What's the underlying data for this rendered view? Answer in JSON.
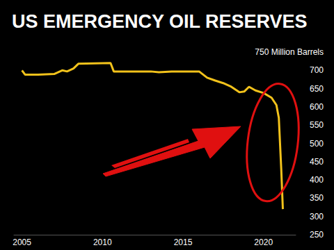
{
  "chart_data": {
    "type": "line",
    "title": "US EMERGENCY OIL RESERVES",
    "x": [
      2005,
      2005.2,
      2006,
      2007,
      2007.5,
      2007.8,
      2008.2,
      2008.5,
      2010.5,
      2010.7,
      2013,
      2013.5,
      2014.3,
      2016,
      2016.5,
      2017,
      2017.5,
      2018,
      2018.5,
      2018.8,
      2019.1,
      2019.5,
      2020,
      2020.5,
      2020.8,
      2020.95,
      2021.1,
      2021.2
    ],
    "values": [
      700,
      688,
      688,
      690,
      700,
      697,
      705,
      718,
      720,
      697,
      697,
      695,
      697,
      697,
      680,
      672,
      665,
      655,
      640,
      642,
      655,
      645,
      638,
      625,
      605,
      570,
      430,
      320
    ],
    "color": "#f2c21b",
    "xlim": [
      2004.5,
      2022
    ],
    "xticks": [
      2005,
      2010,
      2015,
      2020
    ],
    "ylim": [
      250,
      750
    ],
    "yticks": [
      250,
      300,
      350,
      400,
      450,
      500,
      550,
      600,
      650,
      700,
      {
        "value": 750,
        "label": "750 Million Barrels"
      }
    ],
    "grid": false
  }
}
